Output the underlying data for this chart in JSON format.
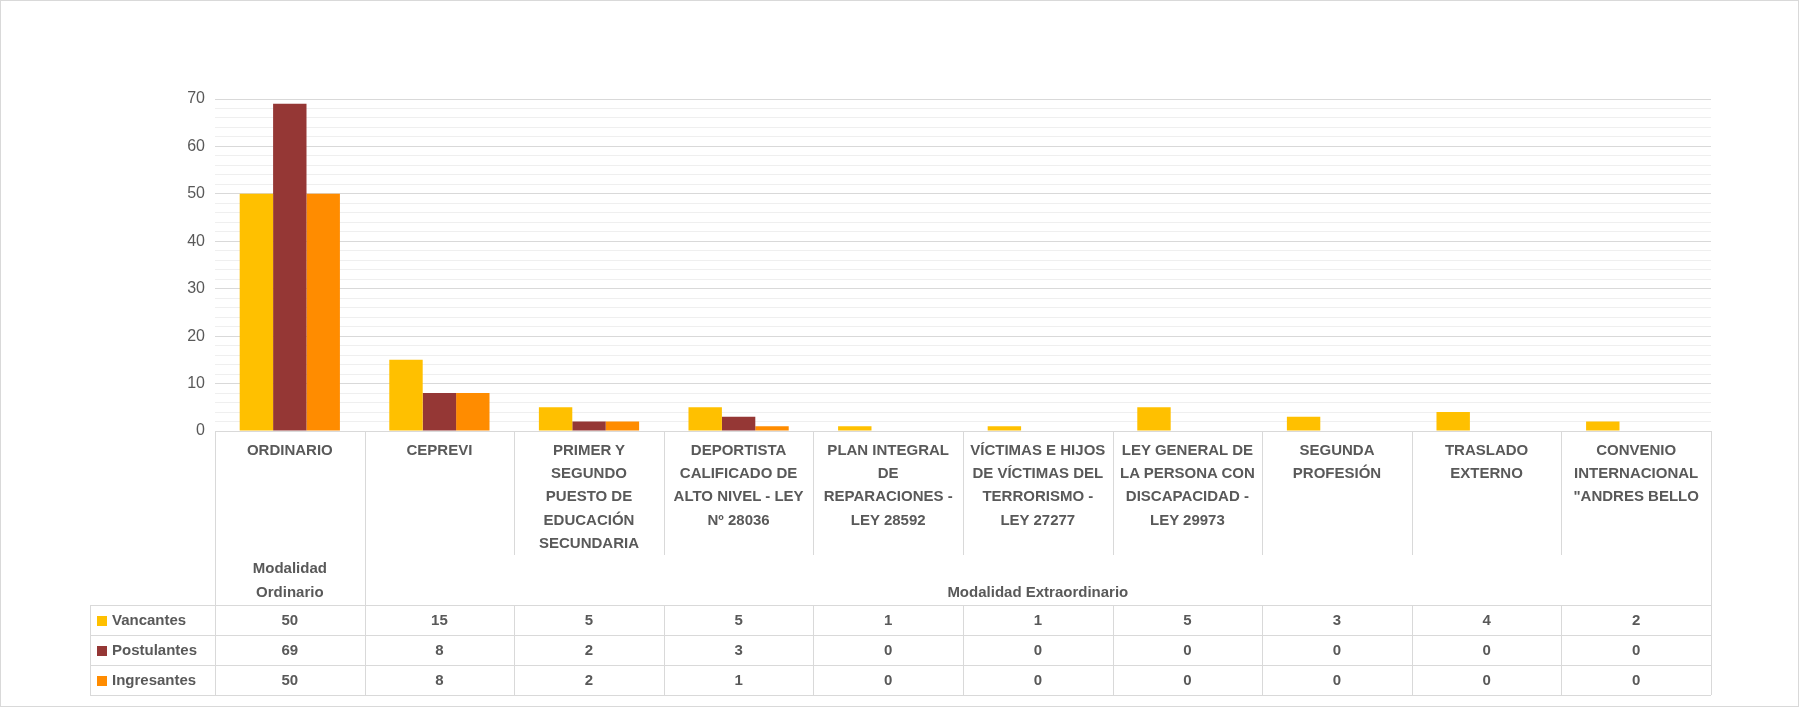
{
  "chart_data": {
    "type": "bar",
    "categories": [
      "ORDINARIO",
      "CEPREVI",
      "PRIMER Y SEGUNDO PUESTO DE EDUCACIÓN SECUNDARIA",
      "DEPORTISTA CALIFICADO DE ALTO NIVEL - LEY Nº 28036",
      "PLAN INTEGRAL DE REPARACIONES - LEY 28592",
      "VÍCTIMAS E HIJOS DE VÍCTIMAS DEL TERRORISMO - LEY 27277",
      "LEY GENERAL DE LA PERSONA CON DISCAPACIDAD - LEY 29973",
      "SEGUNDA PROFESIÓN",
      "TRASLADO EXTERNO",
      "CONVENIO INTERNACIONAL \"ANDRES BELLO"
    ],
    "series": [
      {
        "name": "Vancantes",
        "color": "#ffc000",
        "values": [
          50,
          15,
          5,
          5,
          1,
          1,
          5,
          3,
          4,
          2
        ]
      },
      {
        "name": "Postulantes",
        "color": "#953735",
        "values": [
          69,
          8,
          2,
          3,
          0,
          0,
          0,
          0,
          0,
          0
        ]
      },
      {
        "name": "Ingresantes",
        "color": "#ff8c00",
        "values": [
          50,
          8,
          2,
          1,
          0,
          0,
          0,
          0,
          0,
          0
        ]
      }
    ],
    "ylim": [
      0,
      70
    ],
    "yticks": [
      0,
      {
        "value": 2,
        "label": null
      },
      {
        "value": 4,
        "label": null
      },
      {
        "value": 6,
        "label": null
      },
      {
        "value": 8,
        "label": null
      },
      10,
      {
        "value": 12,
        "label": null
      },
      {
        "value": 14,
        "label": null
      },
      {
        "value": 16,
        "label": null
      },
      {
        "value": 18,
        "label": null
      },
      20,
      {
        "value": 22,
        "label": null
      },
      {
        "value": 24,
        "label": null
      },
      {
        "value": 26,
        "label": null
      },
      {
        "value": 28,
        "label": null
      },
      30,
      {
        "value": 32,
        "label": null
      },
      {
        "value": 34,
        "label": null
      },
      {
        "value": 36,
        "label": null
      },
      {
        "value": 38,
        "label": null
      },
      40,
      {
        "value": 42,
        "label": null
      },
      {
        "value": 44,
        "label": null
      },
      {
        "value": 46,
        "label": null
      },
      {
        "value": 48,
        "label": null
      },
      50,
      {
        "value": 52,
        "label": null
      },
      {
        "value": 54,
        "label": null
      },
      {
        "value": 56,
        "label": null
      },
      {
        "value": 58,
        "label": null
      },
      60,
      {
        "value": 62,
        "label": null
      },
      {
        "value": 64,
        "label": null
      },
      {
        "value": 66,
        "label": null
      },
      {
        "value": 68,
        "label": null
      },
      70
    ],
    "grid": "y",
    "legend": "bottom left",
    "data_labels": true,
    "annotations": [
      "Modalidad Ordinario",
      "Modalidad Extraordinario"
    ]
  }
}
